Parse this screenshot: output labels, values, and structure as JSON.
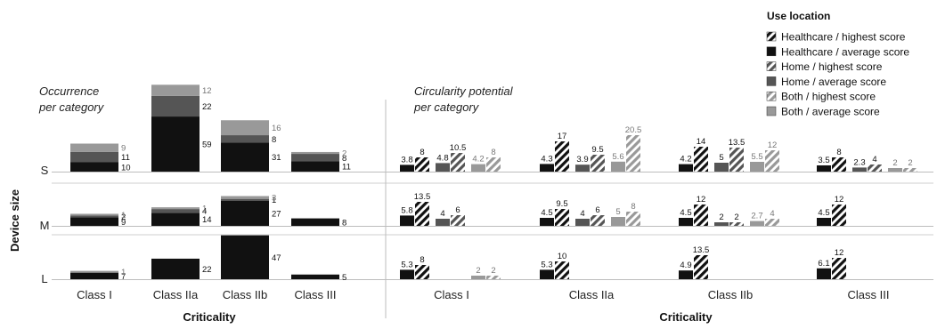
{
  "chart_data": [
    {
      "type": "bar",
      "stacked": true,
      "title": "Occurrence per category",
      "title_lines": [
        "Occurrence",
        "per category"
      ],
      "xlabel": "Criticality",
      "ylabel": "Device size",
      "categories": [
        "Class I",
        "Class IIa",
        "Class IIb",
        "Class III"
      ],
      "rows": [
        "S",
        "M",
        "L"
      ],
      "series_note": "stack order bottom to top: Healthcare, Home, Both",
      "values": {
        "S": {
          "Class I": {
            "healthcare": 10,
            "home": 11,
            "both": 9
          },
          "Class IIa": {
            "healthcare": 59,
            "home": 22,
            "both": 12
          },
          "Class IIb": {
            "healthcare": 31,
            "home": 8,
            "both": 16
          },
          "Class III": {
            "healthcare": 11,
            "home": 8,
            "both": 2
          }
        },
        "M": {
          "Class I": {
            "healthcare": 9,
            "home": 2,
            "both": 1
          },
          "Class IIa": {
            "healthcare": 14,
            "home": 4,
            "both": 1
          },
          "Class IIb": {
            "healthcare": 27,
            "home": 1,
            "both": 3
          },
          "Class III": {
            "healthcare": 8,
            "home": null,
            "both": null
          }
        },
        "L": {
          "Class I": {
            "healthcare": 7,
            "home": null,
            "both": 1
          },
          "Class IIa": {
            "healthcare": 22,
            "home": null,
            "both": null
          },
          "Class IIb": {
            "healthcare": 47,
            "home": null,
            "both": null
          },
          "Class III": {
            "healthcare": 5,
            "home": null,
            "both": null
          }
        }
      }
    },
    {
      "type": "bar",
      "title": "Circularity potential per category",
      "title_lines": [
        "Circularity potential",
        "per category"
      ],
      "xlabel": "Criticality",
      "categories": [
        "Class I",
        "Class IIa",
        "Class IIb",
        "Class III"
      ],
      "rows": [
        "S",
        "M",
        "L"
      ],
      "values": {
        "S": {
          "Class I": {
            "hc_avg": 3.8,
            "hc_high": 8,
            "home_avg": 4.8,
            "home_high": 10.5,
            "both_avg": 4.2,
            "both_high": 8
          },
          "Class IIa": {
            "hc_avg": 4.3,
            "hc_high": 17,
            "home_avg": 3.9,
            "home_high": 9.5,
            "both_avg": 5.6,
            "both_high": 20.5
          },
          "Class IIb": {
            "hc_avg": 4.2,
            "hc_high": 14,
            "home_avg": 5,
            "home_high": 13.5,
            "both_avg": 5.5,
            "both_high": 12
          },
          "Class III": {
            "hc_avg": 3.5,
            "hc_high": 8,
            "home_avg": 2.3,
            "home_high": 4,
            "both_avg": 2,
            "both_high": 2
          }
        },
        "M": {
          "Class I": {
            "hc_avg": 5.8,
            "hc_high": 13.5,
            "home_avg": 4,
            "home_high": 6,
            "both_avg": null,
            "both_high": null
          },
          "Class IIa": {
            "hc_avg": 4.5,
            "hc_high": 9.5,
            "home_avg": 4,
            "home_high": 6,
            "both_avg": 5,
            "both_high": 8
          },
          "Class IIb": {
            "hc_avg": 4.5,
            "hc_high": 12,
            "home_avg": 2,
            "home_high": 2,
            "both_avg": 2.7,
            "both_high": 4
          },
          "Class III": {
            "hc_avg": 4.5,
            "hc_high": 12,
            "home_avg": null,
            "home_high": null,
            "both_avg": null,
            "both_high": null
          }
        },
        "L": {
          "Class I": {
            "hc_avg": 5.3,
            "hc_high": 8,
            "home_avg": null,
            "home_high": null,
            "both_avg": 2,
            "both_high": 2
          },
          "Class IIa": {
            "hc_avg": 5.3,
            "hc_high": 10,
            "home_avg": null,
            "home_high": null,
            "both_avg": null,
            "both_high": null
          },
          "Class IIb": {
            "hc_avg": 4.9,
            "hc_high": 13.5,
            "home_avg": null,
            "home_high": null,
            "both_avg": null,
            "both_high": null
          },
          "Class III": {
            "hc_avg": 6.1,
            "hc_high": 12,
            "home_avg": null,
            "home_high": null,
            "both_avg": null,
            "both_high": null
          }
        }
      }
    }
  ],
  "legend": {
    "title": "Use location",
    "placement": "top-right",
    "items": [
      {
        "key": "hc_high",
        "label": "Healthcare / highest score",
        "color": "#111111",
        "hatched": true
      },
      {
        "key": "hc_avg",
        "label": "Healthcare / average score",
        "color": "#111111",
        "hatched": false
      },
      {
        "key": "home_high",
        "label": "Home / highest score",
        "color": "#555555",
        "hatched": true
      },
      {
        "key": "home_avg",
        "label": "Home / average score",
        "color": "#555555",
        "hatched": false
      },
      {
        "key": "both_high",
        "label": "Both / highest score",
        "color": "#999999",
        "hatched": true
      },
      {
        "key": "both_avg",
        "label": "Both / average score",
        "color": "#999999",
        "hatched": false
      }
    ]
  },
  "colors": {
    "healthcare": "#111111",
    "home": "#555555",
    "both": "#999999"
  }
}
